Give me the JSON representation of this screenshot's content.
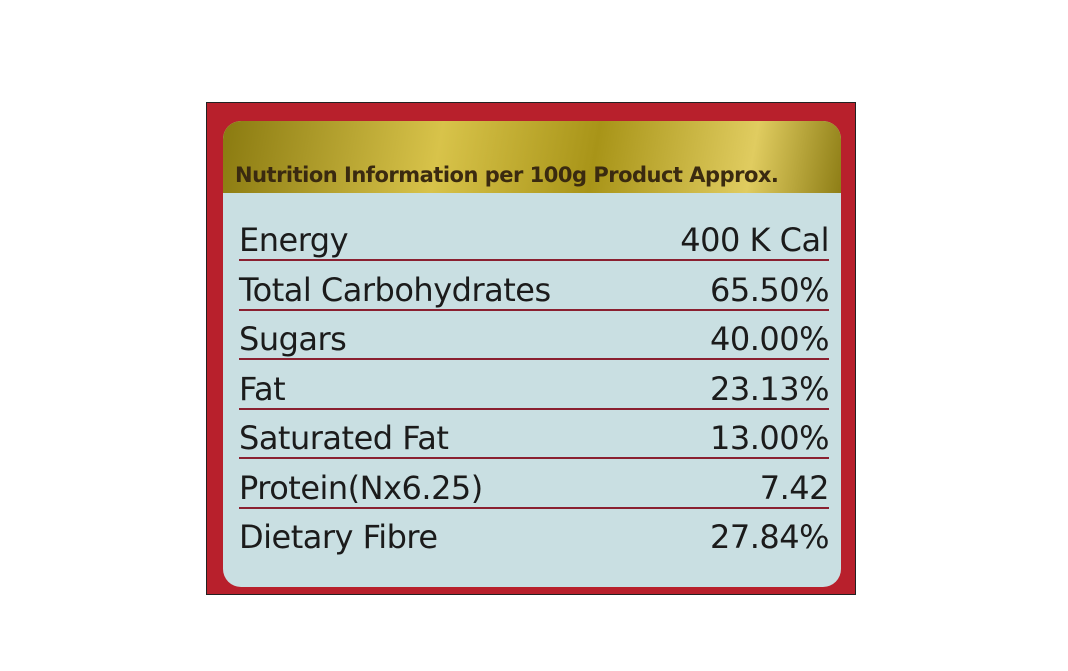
{
  "label": {
    "title": "Nutrition Information per 100g Product Approx.",
    "rows": [
      [
        "Energy",
        "400 K Cal"
      ],
      [
        "Total Carbohydrates",
        "65.50%"
      ],
      [
        "Sugars",
        "40.00%"
      ],
      [
        "Fat",
        "23.13%"
      ],
      [
        "Saturated Fat",
        "13.00%"
      ],
      [
        "Protein(Nx6.25)",
        "7.42"
      ],
      [
        "Dietary Fibre",
        "27.84%"
      ]
    ]
  }
}
